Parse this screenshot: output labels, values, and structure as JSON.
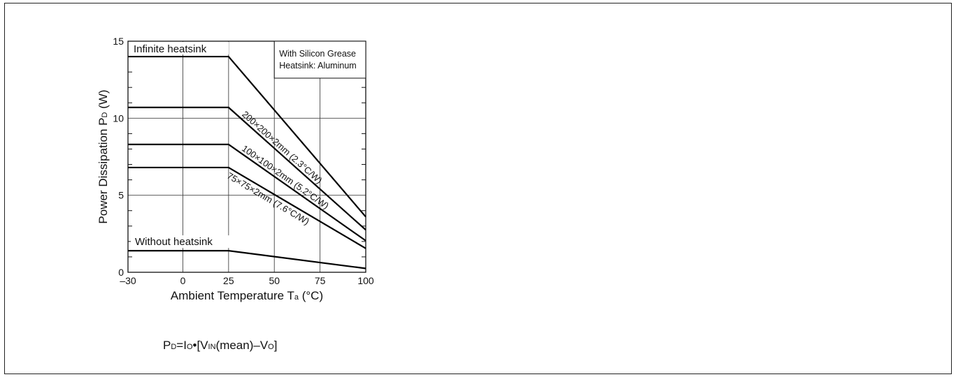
{
  "chart_data": {
    "type": "line",
    "xlabel": {
      "main": "Ambient Temperature T",
      "sub": "a",
      "unit": " (°C)"
    },
    "ylabel": {
      "main": "Power Dissipation P",
      "sub": "D",
      "unit": " (W)"
    },
    "xlim": [
      -30,
      100
    ],
    "ylim": [
      0,
      15
    ],
    "x_ticks": [
      "–30",
      "0",
      "25",
      "50",
      "75",
      "100"
    ],
    "x_tick_values": [
      -30,
      0,
      25,
      50,
      75,
      100
    ],
    "y_ticks": [
      "0",
      "5",
      "10",
      "15"
    ],
    "y_tick_values": [
      0,
      5,
      10,
      15
    ],
    "grid": true,
    "series": [
      {
        "name": "Infinite heatsink",
        "x": [
          -30,
          25,
          100
        ],
        "y": [
          14,
          14,
          3.6
        ]
      },
      {
        "name": "200×200×2mm (2.3°C/W)",
        "x": [
          -30,
          25,
          100
        ],
        "y": [
          10.7,
          10.7,
          2.75
        ]
      },
      {
        "name": "100×100×2mm (5.2°C/W)",
        "x": [
          -30,
          25,
          100
        ],
        "y": [
          8.3,
          8.3,
          2.05
        ]
      },
      {
        "name": "75×75×2mm (7.6°C/W)",
        "x": [
          -30,
          25,
          100
        ],
        "y": [
          6.8,
          6.8,
          1.55
        ]
      },
      {
        "name": "Without heatsink",
        "x": [
          -30,
          25,
          100
        ],
        "y": [
          1.4,
          1.4,
          0.25
        ]
      }
    ],
    "annotations": {
      "line1": "With Silicon Grease",
      "line2": "Heatsink: Aluminum"
    }
  },
  "formula": {
    "p": "P",
    "p_sub": "D",
    "eq": "=I",
    "io_sub": "O",
    "bullet": "•[V",
    "vin_sub": "IN",
    "mean": "(mean)–V",
    "vo_sub": "O",
    "close": "]"
  }
}
